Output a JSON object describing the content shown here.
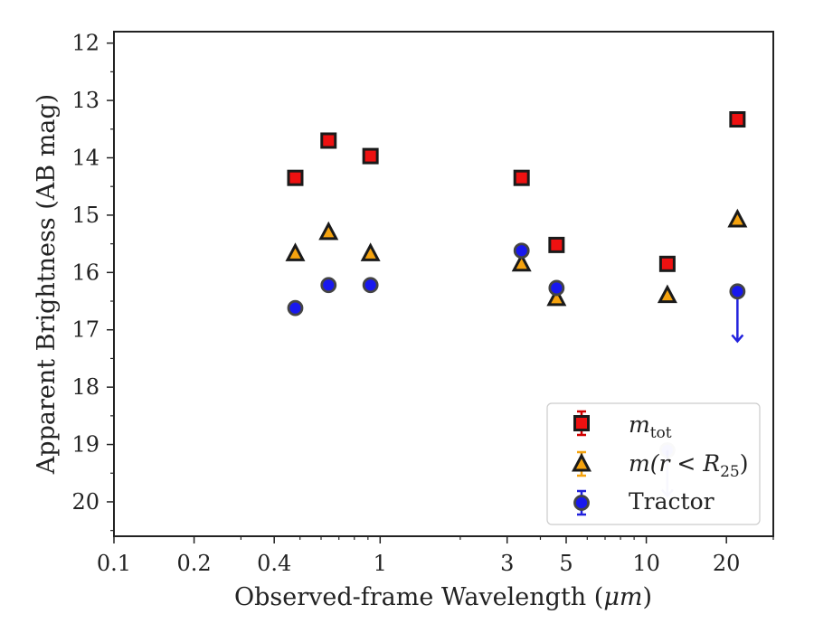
{
  "chart_data": {
    "type": "scatter",
    "title": "",
    "xlabel_main": "Observed-frame Wavelength (",
    "xlabel_unit": "μm",
    "xlabel_close": ")",
    "ylabel": "Apparent Brightness (AB mag)",
    "xscale": "log",
    "xlim": [
      0.1,
      30
    ],
    "ylim": [
      20.6,
      11.8
    ],
    "y_inverted": true,
    "grid": false,
    "legend_position": "lower-right",
    "x_ticks": [
      {
        "value": 0.1,
        "label": "0.1"
      },
      {
        "value": 0.2,
        "label": "0.2"
      },
      {
        "value": 0.4,
        "label": "0.4"
      },
      {
        "value": 1,
        "label": "1"
      },
      {
        "value": 3,
        "label": "3"
      },
      {
        "value": 5,
        "label": "5"
      },
      {
        "value": 10,
        "label": "10"
      },
      {
        "value": 20,
        "label": "20"
      }
    ],
    "x_minor_ticks": [
      0.3,
      0.5,
      0.6,
      0.7,
      0.8,
      0.9,
      2,
      4,
      6,
      7,
      8,
      9,
      30
    ],
    "y_ticks": [
      {
        "value": 12,
        "label": "12"
      },
      {
        "value": 13,
        "label": "13"
      },
      {
        "value": 14,
        "label": "14"
      },
      {
        "value": 15,
        "label": "15"
      },
      {
        "value": 16,
        "label": "16"
      },
      {
        "value": 17,
        "label": "17"
      },
      {
        "value": 18,
        "label": "18"
      },
      {
        "value": 19,
        "label": "19"
      },
      {
        "value": 20,
        "label": "20"
      }
    ],
    "series": [
      {
        "name": "m_tot",
        "legend_main": "m",
        "legend_sub": "tot",
        "marker": "square",
        "color": "#ee1111",
        "edge_color": "#1a1a1a",
        "errorbar_color": "#d10000",
        "points": [
          {
            "x": 0.48,
            "y": 14.35
          },
          {
            "x": 0.64,
            "y": 13.7
          },
          {
            "x": 0.92,
            "y": 13.97
          },
          {
            "x": 3.4,
            "y": 14.35
          },
          {
            "x": 4.6,
            "y": 15.52
          },
          {
            "x": 12,
            "y": 15.85
          },
          {
            "x": 22,
            "y": 13.33
          }
        ]
      },
      {
        "name": "m(r < R25)",
        "legend_main": "m(r < R",
        "legend_sub": "25",
        "legend_close": ")",
        "marker": "triangle",
        "color": "#f5a30f",
        "edge_color": "#1a1a1a",
        "errorbar_color": "#f5a30f",
        "points": [
          {
            "x": 0.48,
            "y": 15.67
          },
          {
            "x": 0.64,
            "y": 15.3
          },
          {
            "x": 0.92,
            "y": 15.67
          },
          {
            "x": 3.4,
            "y": 15.85
          },
          {
            "x": 4.6,
            "y": 16.45
          },
          {
            "x": 12,
            "y": 16.4
          },
          {
            "x": 22,
            "y": 15.08
          }
        ]
      },
      {
        "name": "Tractor",
        "legend_main": "Tractor",
        "marker": "circle",
        "color": "#1818ee",
        "edge_color": "#444444",
        "errorbar_color": "#2222dd",
        "points": [
          {
            "x": 0.48,
            "y": 16.62,
            "err": 0.05
          },
          {
            "x": 0.64,
            "y": 16.22,
            "err": 0.07
          },
          {
            "x": 0.92,
            "y": 16.22,
            "err": 0.07
          },
          {
            "x": 3.4,
            "y": 15.62,
            "err": 0.06
          },
          {
            "x": 4.6,
            "y": 16.27,
            "err": 0.07
          },
          {
            "x": 12,
            "y": 19.1,
            "upper_limit_to": 19.9,
            "faded": true
          },
          {
            "x": 22,
            "y": 16.33,
            "upper_limit_to": 17.2
          }
        ]
      }
    ]
  }
}
